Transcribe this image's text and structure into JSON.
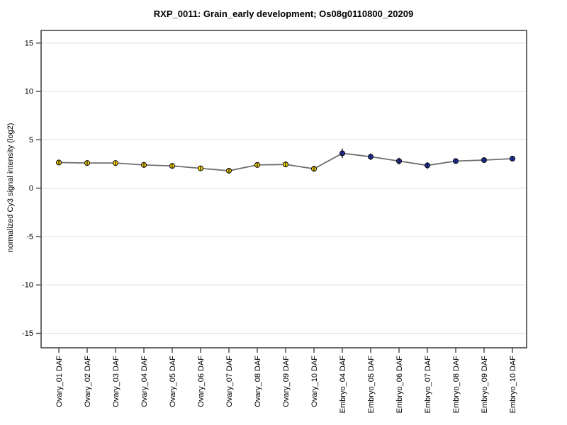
{
  "page": {
    "background": "#ffffff"
  },
  "chart_data": {
    "type": "line",
    "title": "RXP_0011: Grain_early development; Os08g0110800_20209",
    "xlabel": "",
    "ylabel": "normalized Cy3 signal intensity (log2)",
    "ylim": [
      -16.5,
      16.3
    ],
    "yticks": [
      -15,
      -10,
      -5,
      0,
      5,
      10,
      15
    ],
    "grid": "horizontal-only",
    "legend_position": "none",
    "categories": [
      "Ovary_01 DAF",
      "Ovary_02 DAF",
      "Ovary_03 DAF",
      "Ovary_04 DAF",
      "Ovary_05 DAF",
      "Ovary_06 DAF",
      "Ovary_07 DAF",
      "Ovary_08 DAF",
      "Ovary_09 DAF",
      "Ovary_10 DAF",
      "Embryo_04 DAF",
      "Embryo_05 DAF",
      "Embryo_06 DAF",
      "Embryo_07 DAF",
      "Embryo_08 DAF",
      "Embryo_09 DAF",
      "Embryo_10 DAF"
    ],
    "values": [
      2.65,
      2.6,
      2.6,
      2.4,
      2.3,
      2.05,
      1.8,
      2.4,
      2.45,
      2.0,
      3.6,
      3.25,
      2.8,
      2.35,
      2.8,
      2.9,
      3.05
    ],
    "errors": [
      0.2,
      0.25,
      0.2,
      0.2,
      0.25,
      0.2,
      0.25,
      0.2,
      0.25,
      0.3,
      0.5,
      0.35,
      0.35,
      0.35,
      0.2,
      0.15,
      0.15
    ],
    "point_groups": [
      "Ovary",
      "Ovary",
      "Ovary",
      "Ovary",
      "Ovary",
      "Ovary",
      "Ovary",
      "Ovary",
      "Ovary",
      "Ovary",
      "Embryo",
      "Embryo",
      "Embryo",
      "Embryo",
      "Embryo",
      "Embryo",
      "Embryo"
    ],
    "group_colors": {
      "Ovary": "#ffd900",
      "Embryo": "#2233b0"
    },
    "line_color": "#6f6f6f",
    "marker_outline": "#111111",
    "axis_color": "#454545",
    "grid_color": "#e4e4e4",
    "text_color": "#000000"
  }
}
